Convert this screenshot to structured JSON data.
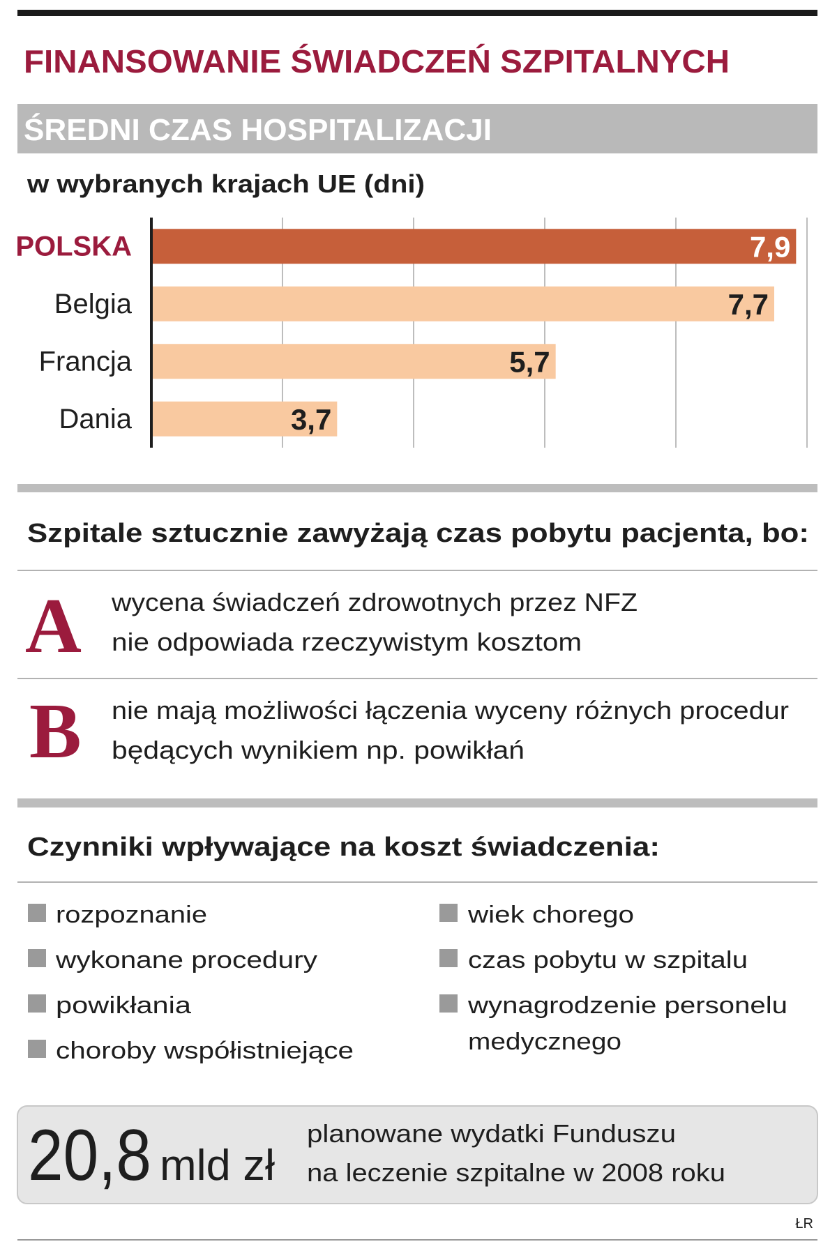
{
  "header": {
    "title": "FINANSOWANIE ŚWIADCZEŃ SZPITALNYCH",
    "section": "ŚREDNI CZAS HOSPITALIZACJI",
    "subtitle": "w wybranych krajach UE (dni)"
  },
  "chart_data": {
    "type": "bar",
    "orientation": "horizontal",
    "categories": [
      "POLSKA",
      "Belgia",
      "Francja",
      "Dania"
    ],
    "values": [
      7.9,
      7.7,
      5.7,
      3.7
    ],
    "value_labels": [
      "7,9",
      "7,7",
      "5,7",
      "3,7"
    ],
    "colors": [
      "#c65f3a",
      "#f9c9a0",
      "#f9c9a0",
      "#f9c9a0"
    ],
    "xlim": [
      2,
      8
    ],
    "xticks": [
      3.2,
      4.4,
      5.6,
      6.8,
      8
    ],
    "grid": true
  },
  "reasons": {
    "heading": "Szpitale sztucznie zawyżają czas pobytu pacjenta, bo:",
    "items": [
      {
        "letter": "A",
        "lines": [
          "wycena świadczeń zdrowotnych przez NFZ",
          "nie odpowiada rzeczywistym kosztom"
        ]
      },
      {
        "letter": "B",
        "lines": [
          "nie mają możliwości łączenia wyceny różnych procedur",
          "będących wynikiem np. powikłań"
        ]
      }
    ]
  },
  "factors": {
    "heading": "Czynniki wpływające na koszt świadczenia:",
    "left": [
      [
        "rozpoznanie"
      ],
      [
        "wykonane procedury"
      ],
      [
        "powikłania"
      ],
      [
        "choroby współistniejące"
      ]
    ],
    "right": [
      [
        "wiek chorego"
      ],
      [
        "czas pobytu w szpitalu"
      ],
      [
        "wynagrodzenie personelu",
        "medycznego"
      ]
    ]
  },
  "summary": {
    "amount": "20,8",
    "unit": "mld zł",
    "lines": [
      "planowane wydatki Funduszu",
      "na leczenie szpitalne w 2008 roku"
    ]
  },
  "credit": "ŁR"
}
